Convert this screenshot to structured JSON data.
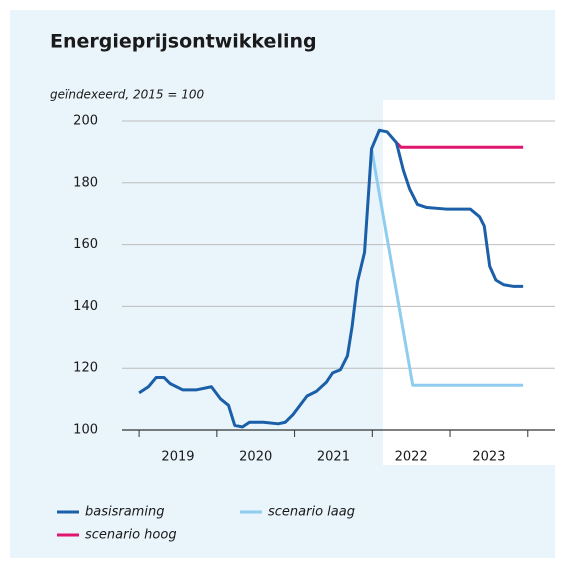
{
  "chart_data": {
    "type": "line",
    "title": "Energieprijsontwikkeling",
    "subtitle": "geïndexeerd, 2015 = 100",
    "xlim": [
      2018.78,
      2024.35
    ],
    "xticks": [
      2019,
      2020,
      2021,
      2022,
      2023,
      2024
    ],
    "x_labels": [
      {
        "value": 2019.5,
        "label": "2019"
      },
      {
        "value": 2020.5,
        "label": "2020"
      },
      {
        "value": 2021.5,
        "label": "2021"
      },
      {
        "value": 2022.5,
        "label": "2022"
      },
      {
        "value": 2023.5,
        "label": "2023"
      }
    ],
    "ylim": [
      100,
      200
    ],
    "yticks": [
      100,
      120,
      140,
      160,
      180,
      200
    ],
    "grid": true,
    "series": [
      {
        "name": "basisraming",
        "color": "#1a5fa8",
        "x": [
          2019.0,
          2019.12,
          2019.22,
          2019.32,
          2019.4,
          2019.56,
          2019.74,
          2019.93,
          2020.05,
          2020.15,
          2020.23,
          2020.33,
          2020.42,
          2020.6,
          2020.79,
          2020.88,
          2020.98,
          2021.16,
          2021.28,
          2021.41,
          2021.49,
          2021.59,
          2021.68,
          2021.74,
          2021.81,
          2021.9,
          2021.99,
          2022.09,
          2022.19,
          2022.31,
          2022.4,
          2022.48,
          2022.58,
          2022.7,
          2022.95,
          2023.26,
          2023.38,
          2023.44,
          2023.51,
          2023.59,
          2023.69,
          2023.81,
          2023.94
        ],
        "values": [
          112,
          114,
          117,
          117,
          115,
          113,
          113,
          114,
          110,
          108,
          101.5,
          101,
          102.5,
          102.5,
          102,
          102.5,
          105,
          111,
          112.5,
          115.5,
          118.5,
          119.5,
          124,
          133.5,
          148,
          157.5,
          191,
          197,
          196.5,
          193,
          184,
          178,
          173,
          172,
          171.5,
          171.5,
          169,
          166,
          153,
          148.5,
          147,
          146.5,
          146.5
        ]
      },
      {
        "name": "scenario hoog",
        "color": "#e0156e",
        "x": [
          2022.31,
          2022.37,
          2023.94
        ],
        "values": [
          193,
          191.5,
          191.5
        ]
      },
      {
        "name": "scenario laag",
        "color": "#8ecdf0",
        "x": [
          2021.99,
          2022.52,
          2023.94
        ],
        "values": [
          191,
          114.5,
          114.5
        ]
      }
    ]
  }
}
